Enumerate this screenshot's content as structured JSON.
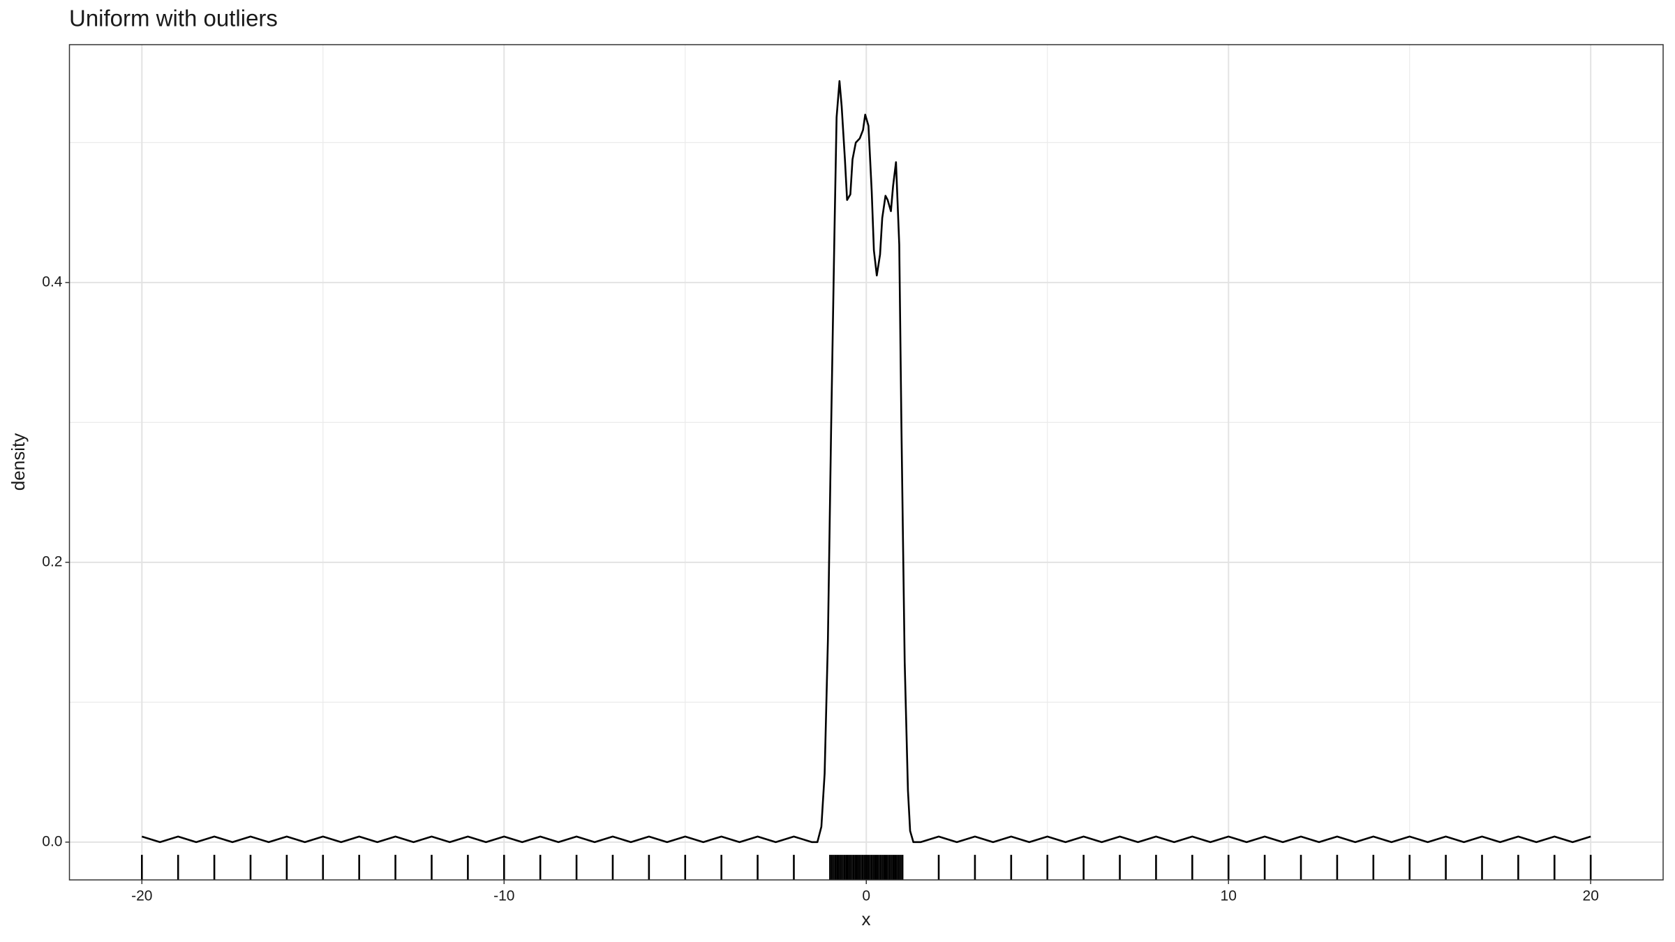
{
  "chart_data": {
    "type": "line",
    "title": "Uniform with outliers",
    "x_label": "x",
    "y_label": "density",
    "x": [
      -20,
      -19.5,
      -19,
      -18.5,
      -18,
      -17.5,
      -17,
      -16.5,
      -16,
      -15.5,
      -15,
      -14.5,
      -14,
      -13.5,
      -13,
      -12.5,
      -12,
      -11.5,
      -11,
      -10.5,
      -10,
      -9.5,
      -9,
      -8.5,
      -8,
      -7.5,
      -7,
      -6.5,
      -6,
      -5.5,
      -5,
      -4.5,
      -4,
      -3.5,
      -3,
      -2.5,
      -2,
      -1.5,
      -1.35,
      -1.24,
      -1.15,
      -1.06,
      -0.97,
      -0.88,
      -0.82,
      -0.74,
      -0.68,
      -0.59,
      -0.53,
      -0.44,
      -0.38,
      -0.29,
      -0.18,
      -0.09,
      -0.03,
      0.06,
      0.15,
      0.21,
      0.29,
      0.38,
      0.44,
      0.53,
      0.59,
      0.68,
      0.74,
      0.82,
      0.91,
      0.97,
      1.06,
      1.15,
      1.21,
      1.3,
      1.5,
      2,
      2.5,
      3,
      3.5,
      4,
      4.5,
      5,
      5.5,
      6,
      6.5,
      7,
      7.5,
      8,
      8.5,
      9,
      9.5,
      10,
      10.5,
      11,
      11.5,
      12,
      12.5,
      13,
      13.5,
      14,
      14.5,
      15,
      15.5,
      16,
      16.5,
      17,
      17.5,
      18,
      18.5,
      19,
      19.5,
      20
    ],
    "values": [
      0.004,
      0,
      0.004,
      0,
      0.004,
      0,
      0.004,
      0,
      0.004,
      0,
      0.004,
      0,
      0.004,
      0,
      0.004,
      0,
      0.004,
      0,
      0.004,
      0,
      0.004,
      0,
      0.004,
      0,
      0.004,
      0,
      0.004,
      0,
      0.004,
      0,
      0.004,
      0,
      0.004,
      0,
      0.004,
      0,
      0.004,
      0,
      0,
      0.011,
      0.049,
      0.144,
      0.297,
      0.434,
      0.518,
      0.544,
      0.526,
      0.488,
      0.459,
      0.463,
      0.488,
      0.5,
      0.503,
      0.509,
      0.52,
      0.512,
      0.465,
      0.423,
      0.405,
      0.42,
      0.446,
      0.462,
      0.459,
      0.451,
      0.469,
      0.486,
      0.427,
      0.297,
      0.129,
      0.037,
      0.008,
      0,
      0,
      0.004,
      0,
      0.004,
      0,
      0.004,
      0,
      0.004,
      0,
      0.004,
      0,
      0.004,
      0,
      0.004,
      0,
      0.004,
      0,
      0.004,
      0,
      0.004,
      0,
      0.004,
      0,
      0.004,
      0,
      0.004,
      0,
      0.004,
      0,
      0.004,
      0,
      0.004,
      0,
      0.004,
      0,
      0.004,
      0,
      0.004
    ],
    "rug": [
      -20,
      -19,
      -18,
      -17,
      -16,
      -15,
      -14,
      -13,
      -12,
      -11,
      -10,
      -9,
      -8,
      -7,
      -6,
      -5,
      -4,
      -3,
      -2,
      -1,
      -0.95,
      -0.9,
      -0.85,
      -0.8,
      -0.75,
      -0.7,
      -0.65,
      -0.6,
      -0.55,
      -0.5,
      -0.45,
      -0.4,
      -0.35,
      -0.3,
      -0.25,
      -0.2,
      -0.15,
      -0.1,
      -0.05,
      0,
      0.05,
      0.1,
      0.15,
      0.2,
      0.25,
      0.3,
      0.35,
      0.4,
      0.45,
      0.5,
      0.55,
      0.6,
      0.65,
      0.7,
      0.75,
      0.8,
      0.85,
      0.9,
      0.95,
      1,
      2,
      3,
      4,
      5,
      6,
      7,
      8,
      9,
      10,
      11,
      12,
      13,
      14,
      15,
      16,
      17,
      18,
      19,
      20
    ],
    "color": "#000000",
    "xlim": [
      -22,
      22
    ],
    "ylim": [
      -0.027,
      0.57
    ],
    "xticks": [
      -20,
      -10,
      0,
      10,
      20
    ],
    "xminor": [
      -15,
      -5,
      5,
      15
    ],
    "yticks": [
      {
        "value": 0,
        "label": "0.0"
      },
      0.2,
      0.4
    ],
    "yminor": [
      0.1,
      0.3,
      0.5
    ],
    "grid": true
  }
}
